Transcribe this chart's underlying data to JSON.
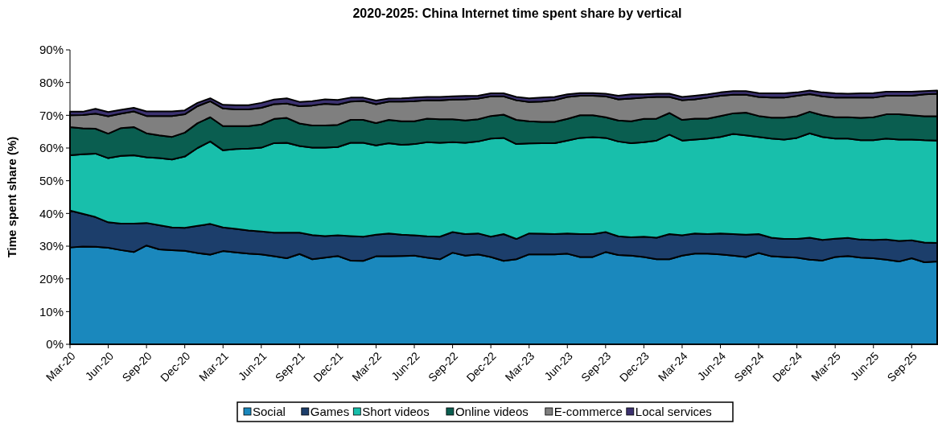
{
  "chart_data": {
    "type": "area",
    "stacked": true,
    "title": "2020-2025: China Internet time spent share by vertical",
    "ylabel": "Time spent share (%)",
    "categories": [
      "Mar-20",
      null,
      null,
      "Jun-20",
      null,
      null,
      "Sep-20",
      null,
      null,
      "Dec-20",
      null,
      null,
      "Mar-21",
      null,
      null,
      "Jun-21",
      null,
      null,
      "Sep-21",
      null,
      null,
      "Dec-21",
      null,
      null,
      "Mar-22",
      null,
      null,
      "Jun-22",
      null,
      null,
      "Sep-22",
      null,
      null,
      "Dec-22",
      null,
      null,
      "Mar-23",
      null,
      null,
      "Jun-23",
      null,
      null,
      "Sep-23",
      null,
      null,
      "Dec-23",
      null,
      null,
      "Mar-24",
      null,
      null,
      "Jun-24",
      null,
      null,
      "Sep-24",
      null,
      null,
      "Dec-24",
      null,
      null,
      "Mar-25",
      null,
      null,
      "Jun-25",
      null,
      null,
      "Sep-25",
      null,
      null
    ],
    "series": [
      {
        "name": "Social",
        "color": "#1a88bd",
        "values": [
          29.6,
          29.9,
          29.8,
          29.5,
          28.8,
          28.2,
          30.2,
          29.0,
          28.8,
          28.6,
          27.9,
          27.4,
          28.5,
          28.1,
          27.7,
          27.5,
          26.9,
          26.3,
          27.6,
          26.0,
          26.5,
          27.0,
          25.6,
          25.5,
          26.9,
          26.9,
          27.0,
          27.1,
          26.5,
          26.0,
          28.0,
          27.1,
          27.5,
          26.7,
          25.5,
          26.0,
          27.5,
          27.5,
          27.5,
          27.7,
          26.7,
          26.7,
          28.2,
          27.3,
          27.1,
          26.7,
          26.0,
          26.0,
          27.1,
          27.7,
          27.7,
          27.5,
          27.1,
          26.7,
          27.9,
          26.9,
          26.7,
          26.5,
          25.9,
          25.6,
          26.7,
          27.0,
          26.5,
          26.3,
          25.9,
          25.3,
          26.3,
          25.1,
          25.3
        ]
      },
      {
        "name": "Games",
        "color": "#1c3e6b",
        "values": [
          11.3,
          10.0,
          9.1,
          7.8,
          8.1,
          8.7,
          6.9,
          7.4,
          6.9,
          7.0,
          8.3,
          9.4,
          7.2,
          7.2,
          7.1,
          7.0,
          7.2,
          7.8,
          6.5,
          7.4,
          6.6,
          6.3,
          7.5,
          7.4,
          6.6,
          7.0,
          6.5,
          6.2,
          6.5,
          6.9,
          6.3,
          6.6,
          6.4,
          6.2,
          8.2,
          6.2,
          6.4,
          6.3,
          6.2,
          6.2,
          7.0,
          7.0,
          6.1,
          5.7,
          5.6,
          6.2,
          6.6,
          7.7,
          6.2,
          6.2,
          6.0,
          6.4,
          6.6,
          6.8,
          5.8,
          5.7,
          5.5,
          5.7,
          6.7,
          6.3,
          5.6,
          5.5,
          5.5,
          5.6,
          6.1,
          6.3,
          5.5,
          6.0,
          5.7
        ]
      },
      {
        "name": "Short videos",
        "color": "#18bfab",
        "values": [
          16.9,
          18.2,
          19.4,
          19.6,
          20.7,
          20.9,
          20.1,
          20.5,
          20.8,
          21.8,
          23.8,
          25.2,
          23.6,
          24.4,
          25.0,
          25.6,
          27.4,
          27.5,
          26.5,
          26.7,
          27.0,
          27.0,
          28.5,
          28.7,
          27.3,
          27.6,
          27.5,
          27.9,
          28.8,
          28.7,
          27.5,
          27.9,
          28.1,
          30.0,
          29.4,
          29.0,
          27.5,
          27.7,
          27.8,
          28.4,
          29.4,
          29.6,
          28.8,
          29.0,
          28.8,
          28.9,
          29.7,
          30.4,
          29.0,
          28.7,
          29.2,
          29.5,
          30.6,
          30.4,
          29.7,
          30.3,
          30.4,
          30.9,
          31.9,
          31.5,
          30.6,
          30.4,
          30.4,
          30.5,
          30.9,
          31.0,
          30.8,
          31.3,
          31.3
        ]
      },
      {
        "name": "Online videos",
        "color": "#0a5e50",
        "values": [
          8.6,
          7.9,
          7.6,
          7.5,
          8.5,
          8.6,
          7.3,
          7.0,
          6.9,
          7.3,
          7.6,
          7.4,
          7.4,
          7.0,
          6.9,
          7.1,
          7.4,
          7.6,
          6.9,
          6.8,
          6.8,
          6.8,
          7.0,
          7.0,
          6.8,
          7.1,
          7.2,
          7.0,
          7.2,
          7.2,
          7.0,
          6.8,
          6.8,
          6.9,
          7.1,
          7.4,
          6.8,
          6.5,
          6.5,
          6.6,
          6.9,
          6.7,
          6.3,
          6.4,
          6.7,
          7.1,
          6.7,
          6.6,
          6.3,
          6.4,
          6.1,
          6.4,
          6.3,
          6.9,
          6.4,
          6.4,
          6.7,
          6.6,
          6.6,
          6.6,
          6.5,
          6.5,
          6.8,
          7.0,
          7.4,
          7.7,
          7.4,
          7.3,
          7.4
        ]
      },
      {
        "name": "E-commerce",
        "color": "#7f7f7f",
        "values": [
          3.6,
          4.1,
          4.6,
          5.3,
          4.4,
          4.8,
          5.3,
          5.9,
          6.4,
          5.6,
          5.2,
          4.9,
          5.4,
          5.1,
          5.1,
          5.1,
          4.5,
          4.4,
          5.3,
          6.1,
          6.6,
          6.2,
          5.6,
          5.8,
          5.8,
          5.6,
          6.0,
          6.1,
          5.6,
          5.8,
          6.0,
          6.5,
          6.3,
          6.0,
          5.6,
          6.0,
          5.9,
          6.2,
          6.6,
          6.7,
          6.0,
          6.0,
          6.4,
          6.5,
          6.9,
          6.5,
          6.6,
          4.9,
          6.0,
          5.9,
          6.4,
          6.2,
          5.7,
          5.5,
          5.8,
          6.1,
          6.1,
          6.3,
          5.4,
          5.8,
          6.0,
          6.0,
          6.2,
          6.0,
          5.7,
          5.7,
          6.0,
          6.7,
          6.9
        ]
      },
      {
        "name": "Local services",
        "color": "#3c3270",
        "values": [
          1.1,
          1.0,
          1.5,
          1.3,
          1.2,
          1.1,
          1.4,
          1.4,
          1.4,
          1.2,
          1.0,
          0.9,
          1.1,
          1.3,
          1.3,
          1.5,
          1.4,
          1.6,
          1.3,
          1.3,
          1.4,
          1.4,
          1.2,
          1.0,
          1.1,
          0.9,
          1.0,
          1.1,
          1.0,
          1.0,
          1.0,
          1.0,
          0.9,
          0.9,
          0.9,
          1.0,
          1.1,
          1.2,
          1.0,
          0.8,
          0.8,
          0.8,
          0.8,
          1.1,
          1.3,
          1.0,
          1.0,
          1.0,
          1.0,
          1.1,
          1.0,
          1.0,
          1.1,
          1.1,
          1.2,
          1.3,
          1.3,
          1.0,
          1.1,
          1.2,
          1.3,
          1.2,
          1.3,
          1.4,
          1.2,
          1.2,
          1.2,
          1.0,
          1.0
        ]
      }
    ],
    "ylim": [
      0,
      90
    ],
    "yticks": [
      {
        "value": 0,
        "label": "0%"
      },
      {
        "value": 10,
        "label": "10%"
      },
      {
        "value": 20,
        "label": "20%"
      },
      {
        "value": 30,
        "label": "30%"
      },
      {
        "value": 40,
        "label": "40%"
      },
      {
        "value": 50,
        "label": "50%"
      },
      {
        "value": 60,
        "label": "60%"
      },
      {
        "value": 70,
        "label": "70%"
      },
      {
        "value": 80,
        "label": "80%"
      },
      {
        "value": 90,
        "label": "90%"
      }
    ],
    "legend": "bottom"
  }
}
